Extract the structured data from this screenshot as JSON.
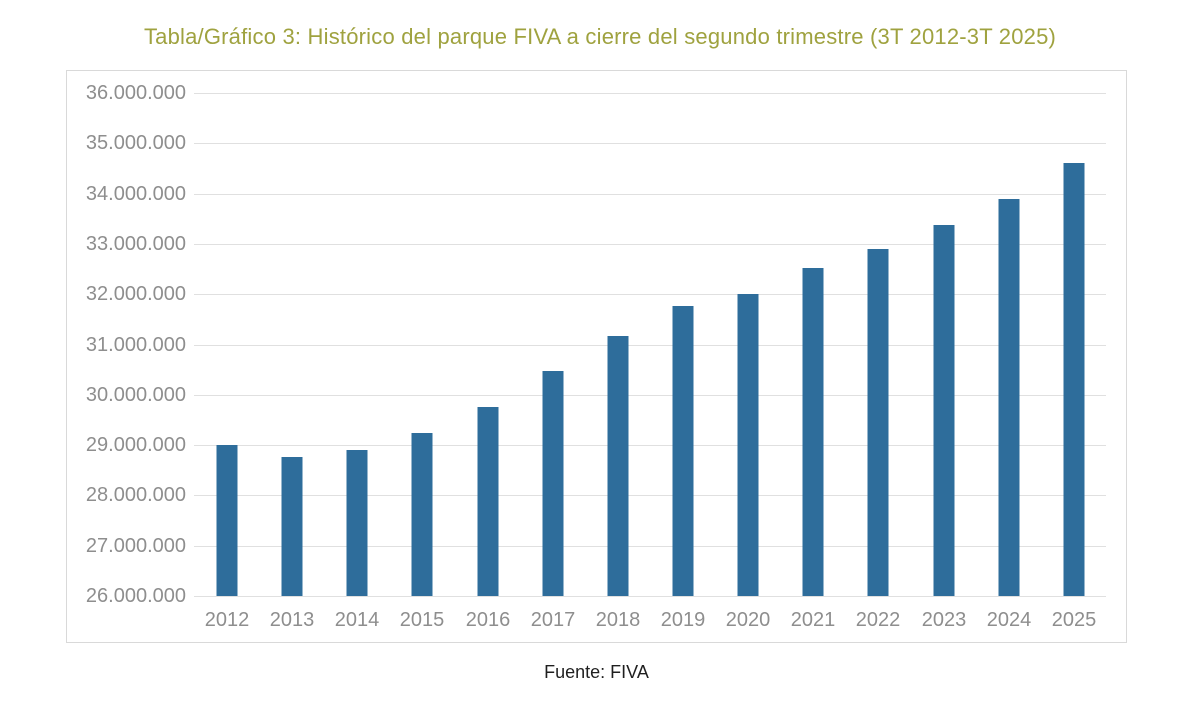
{
  "chart_data": {
    "type": "bar",
    "title": "Tabla/Gráfico 3: Histórico del parque FIVA a cierre del segundo trimestre (3T 2012-3T 2025)",
    "categories": [
      "2012",
      "2013",
      "2014",
      "2015",
      "2016",
      "2017",
      "2018",
      "2019",
      "2020",
      "2021",
      "2022",
      "2023",
      "2024",
      "2025"
    ],
    "values": [
      29000000,
      28760000,
      28900000,
      29240000,
      29760000,
      30480000,
      31170000,
      31760000,
      32000000,
      32520000,
      32900000,
      33380000,
      33900000,
      34600000
    ],
    "ylim": [
      26000000,
      36000000
    ],
    "y_tick_step": 1000000,
    "y_tick_labels": [
      "36.000.000",
      "35.000.000",
      "34.000.000",
      "33.000.000",
      "32.000.000",
      "31.000.000",
      "30.000.000",
      "29.000.000",
      "28.000.000",
      "27.000.000",
      "26.000.000"
    ],
    "xlabel": "",
    "ylabel": "",
    "grid": true,
    "legend": false,
    "source": "Fuente: FIVA"
  },
  "colors": {
    "bar": "#2e6d9b",
    "title": "#9fa23f",
    "axis_text": "#8e8e8e",
    "gridline": "#e0e0e0",
    "box_border": "#d9d9d9",
    "source_text": "#1f1f1f"
  }
}
